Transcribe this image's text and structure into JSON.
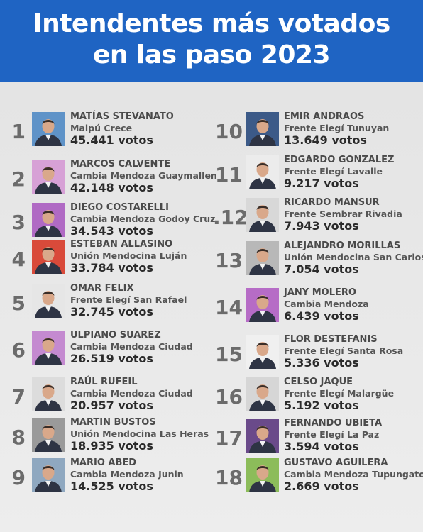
{
  "header": {
    "title_line1": "Intendentes más votados",
    "title_line2": "en las paso 2023"
  },
  "colors": {
    "header_bg": "#1f64c3",
    "title_text": "#ffffff",
    "background": "#e9e9e9",
    "rank_text": "#6b6b6b"
  },
  "candidates": [
    {
      "rank": "1",
      "name": "MATÍAS STEVANATO",
      "party": "Maipú Crece",
      "votes": "45.441 votos",
      "photo_bg": "#5f93c8"
    },
    {
      "rank": "2",
      "name": "MARCOS CALVENTE",
      "party": "Cambia Mendoza Guaymallen",
      "votes": "42.148 votos",
      "photo_bg": "#d7a1d6"
    },
    {
      "rank": "3",
      "name": "DIEGO COSTARELLI",
      "party": "Cambia Mendoza Godoy Cruz",
      "votes": "34.543 votos",
      "photo_bg": "#b06ac4"
    },
    {
      "rank": "4",
      "name": "ESTEBAN ALLASINO",
      "party": "Unión Mendocina Luján",
      "votes": "33.784 votos",
      "photo_bg": "#d94a3a"
    },
    {
      "rank": "5",
      "name": "OMAR FELIX",
      "party": "Frente Elegí San Rafael",
      "votes": "32.745 votos",
      "photo_bg": "#e6e6e6"
    },
    {
      "rank": "6",
      "name": "ULPIANO SUAREZ",
      "party": "Cambia Mendoza Ciudad",
      "votes": "26.519 votos",
      "photo_bg": "#c48ad0"
    },
    {
      "rank": "7",
      "name": "RAÚL RUFEIL",
      "party": "Cambia Mendoza Ciudad",
      "votes": "20.957 votos",
      "photo_bg": "#dcdcdc"
    },
    {
      "rank": "8",
      "name": "MARTIN BUSTOS",
      "party": "Unión Mendocina Las Heras",
      "votes": "18.935 votos",
      "photo_bg": "#9a9a9a"
    },
    {
      "rank": "9",
      "name": "MARIO ABED",
      "party": "Cambia Mendoza Junin",
      "votes": "14.525 votos",
      "photo_bg": "#8fa8c0"
    },
    {
      "rank": "10",
      "name": "EMIR ANDRAOS",
      "party": "Frente Elegí Tunuyan",
      "votes": "13.649 votos",
      "photo_bg": "#3c5a88"
    },
    {
      "rank": "11",
      "name": "EDGARDO GONZALEZ",
      "party": "Frente Elegí Lavalle",
      "votes": "9.217 votos",
      "photo_bg": "#ececec"
    },
    {
      "rank": ".12",
      "name": "RICARDO MANSUR",
      "party": "Frente Sembrar Rivadia",
      "votes": "7.943 votos",
      "photo_bg": "#d8d8d8"
    },
    {
      "rank": "13",
      "name": "ALEJANDRO MORILLAS",
      "party": "Unión Mendocina San Carlos",
      "votes": "7.054 votos",
      "photo_bg": "#b8b8b8"
    },
    {
      "rank": "14",
      "name": "JANY MOLERO",
      "party": "Cambia Mendoza",
      "votes": "6.439 votos",
      "photo_bg": "#b66cc6"
    },
    {
      "rank": "15",
      "name": "FLOR  DESTEFANIS",
      "party": "Frente Elegí Santa Rosa",
      "votes": "5.336 votos",
      "photo_bg": "#f0f0f0"
    },
    {
      "rank": "16",
      "name": "CELSO JAQUE",
      "party": "Frente Elegí Malargüe",
      "votes": "5.192 votos",
      "photo_bg": "#d6d6d6"
    },
    {
      "rank": "17",
      "name": "FERNANDO UBIETA",
      "party": "Frente Elegí La Paz",
      "votes": "3.594 votos",
      "photo_bg": "#6a4a8a"
    },
    {
      "rank": "18",
      "name": "GUSTAVO AGUILERA",
      "party": "Cambia Mendoza Tupungato",
      "votes": "2.669 votos",
      "photo_bg": "#8cbc5a"
    }
  ]
}
